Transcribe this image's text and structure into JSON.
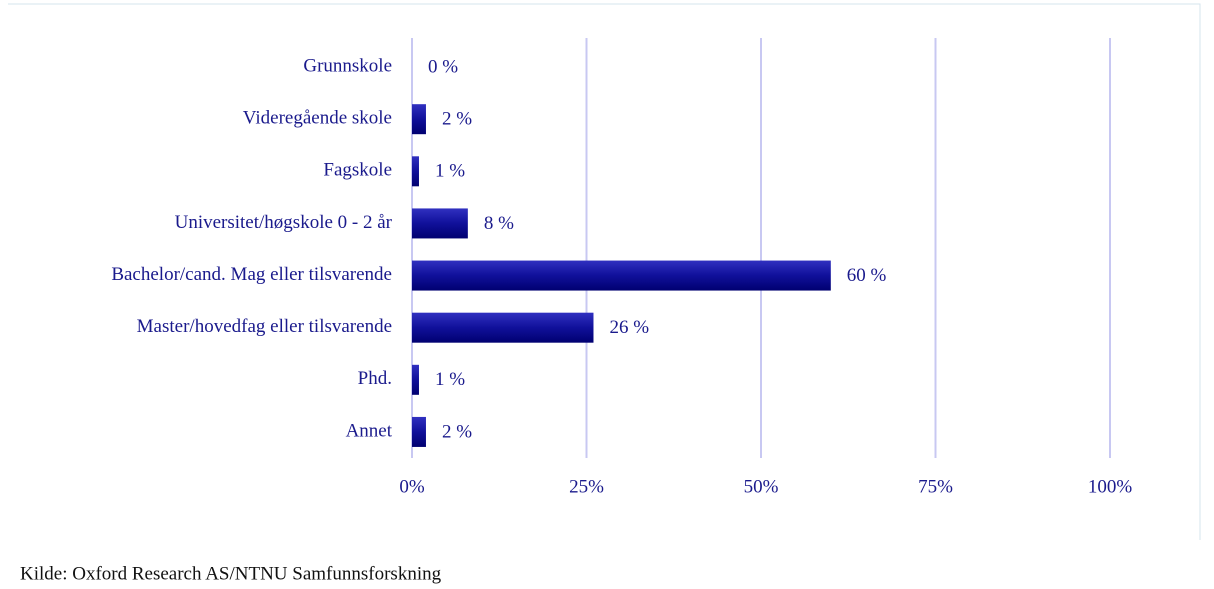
{
  "chart_data": {
    "type": "bar",
    "orientation": "horizontal",
    "categories": [
      "Grunnskole",
      "Videregående skole",
      "Fagskole",
      "Universitet/høgskole 0 - 2 år",
      "Bachelor/cand. Mag eller tilsvarende",
      "Master/hovedfag eller tilsvarende",
      "Phd.",
      "Annet"
    ],
    "values": [
      0,
      2,
      1,
      8,
      60,
      26,
      1,
      2
    ],
    "value_labels": [
      "0 %",
      "2 %",
      "1 %",
      "8 %",
      "60 %",
      "26 %",
      "1 %",
      "2 %"
    ],
    "color": "#10109a",
    "xlim": [
      0,
      100
    ],
    "xticks": [
      {
        "value": 0,
        "label": "0%"
      },
      {
        "value": 25,
        "label": "25%"
      },
      {
        "value": 50,
        "label": "50%"
      },
      {
        "value": 75,
        "label": "75%"
      },
      {
        "value": 100,
        "label": "100%"
      }
    ],
    "grid": true,
    "source": "Kilde: Oxford Research AS/NTNU Samfunnsforskning"
  }
}
